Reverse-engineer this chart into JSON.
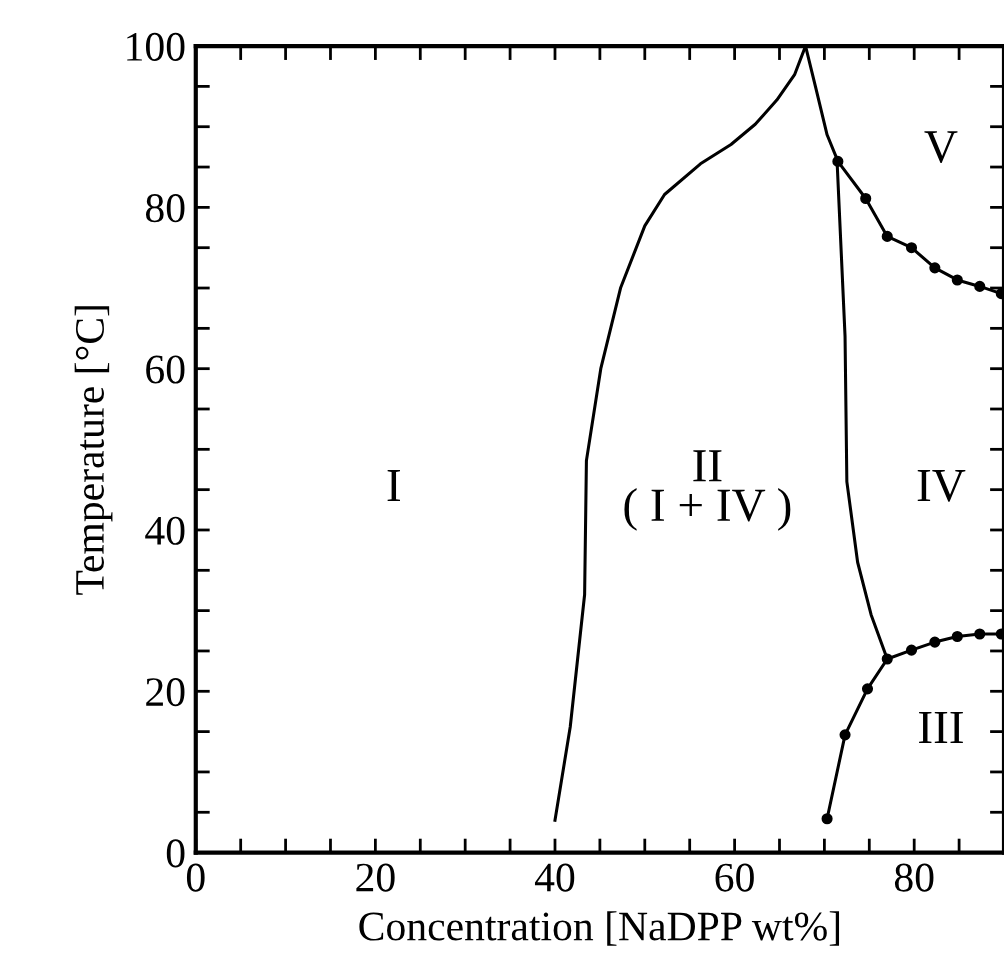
{
  "chart_data": {
    "type": "line",
    "xlabel": "Concentration [NaDPP wt%]",
    "ylabel": "Temperature [°C]",
    "xlim": [
      0,
      90
    ],
    "ylim": [
      0,
      100
    ],
    "xticks": [
      0,
      {
        "value": 5,
        "label": null
      },
      {
        "value": 10,
        "label": null
      },
      {
        "value": 15,
        "label": null
      },
      20,
      {
        "value": 25,
        "label": null
      },
      {
        "value": 30,
        "label": null
      },
      {
        "value": 35,
        "label": null
      },
      40,
      {
        "value": 45,
        "label": null
      },
      {
        "value": 50,
        "label": null
      },
      {
        "value": 55,
        "label": null
      },
      60,
      {
        "value": 65,
        "label": null
      },
      {
        "value": 70,
        "label": null
      },
      {
        "value": 75,
        "label": null
      },
      80,
      {
        "value": 85,
        "label": null
      }
    ],
    "yticks": [
      0,
      {
        "value": 5,
        "label": null
      },
      {
        "value": 10,
        "label": null
      },
      {
        "value": 15,
        "label": null
      },
      20,
      {
        "value": 25,
        "label": null
      },
      {
        "value": 30,
        "label": null
      },
      {
        "value": 35,
        "label": null
      },
      40,
      {
        "value": 45,
        "label": null
      },
      {
        "value": 50,
        "label": null
      },
      {
        "value": 55,
        "label": null
      },
      60,
      {
        "value": 65,
        "label": null
      },
      {
        "value": 70,
        "label": null
      },
      {
        "value": 75,
        "label": null
      },
      80,
      {
        "value": 85,
        "label": null
      },
      {
        "value": 90,
        "label": null
      },
      {
        "value": 95,
        "label": null
      },
      100
    ],
    "grid": false,
    "series": [
      {
        "color": "#000000",
        "marker": "none",
        "x": [
          40,
          41.7,
          43.3,
          43.5,
          45.1,
          47.3,
          50,
          52.2,
          56.2,
          59.6,
          62.3,
          64.7,
          66.7,
          67.9
        ],
        "values": [
          4,
          15.6,
          32,
          48.6,
          60,
          70,
          77.7,
          81.6,
          85.4,
          87.8,
          90.3,
          93.3,
          96.5,
          100
        ]
      },
      {
        "color": "#000000",
        "marker": "none",
        "x": [
          67.9,
          69,
          70.3,
          71.4
        ],
        "values": [
          100,
          95,
          89,
          86
        ]
      },
      {
        "color": "#000000",
        "marker": "none",
        "x": [
          71.4,
          72.3,
          72.5,
          73.7,
          75.2,
          77
        ],
        "values": [
          86,
          64,
          46,
          36,
          29.5,
          24
        ]
      },
      {
        "color": "#000000",
        "marker": "circle",
        "x": [
          71.5,
          74.6,
          77,
          79.7,
          82.3,
          84.8,
          87.3,
          89.7
        ],
        "values": [
          85.7,
          81.1,
          76.4,
          75,
          72.5,
          71,
          70.2,
          69.3
        ]
      },
      {
        "color": "#000000",
        "marker": "circle",
        "x": [
          70.3,
          72.3,
          74.8,
          77,
          79.7,
          82.3,
          84.8,
          87.3,
          89.7
        ],
        "values": [
          4.2,
          14.6,
          20.3,
          24,
          25.1,
          26.1,
          26.8,
          27.1,
          27.1
        ]
      }
    ],
    "annotations": [
      "I",
      "II\n( I + IV )",
      "IV",
      "V",
      "III"
    ]
  }
}
